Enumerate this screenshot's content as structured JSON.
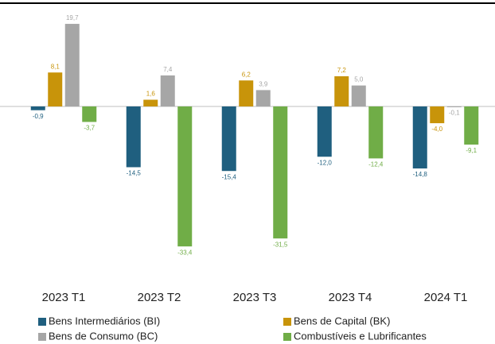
{
  "chart_data": {
    "type": "bar",
    "categories": [
      "2023 T1",
      "2023 T2",
      "2023 T3",
      "2023 T4",
      "2024 T1"
    ],
    "series": [
      {
        "name": "Bens Intermediários (BI)",
        "color": "#1f5f7f",
        "values": [
          -0.9,
          -14.5,
          -15.4,
          -12.0,
          -14.8
        ],
        "value_labels": [
          "-0,9",
          "-14,5",
          "-15,4",
          "-12,0",
          "-14,8"
        ]
      },
      {
        "name": "Bens de Capital (BK)",
        "color": "#c8940a",
        "values": [
          8.1,
          1.6,
          6.2,
          7.2,
          -4.0
        ],
        "value_labels": [
          "8,1",
          "1,6",
          "6,2",
          "7,2",
          "-4,0"
        ]
      },
      {
        "name": "Bens de Consumo (BC)",
        "color": "#a6a6a6",
        "values": [
          19.7,
          7.4,
          3.9,
          5.0,
          -0.1
        ],
        "value_labels": [
          "19,7",
          "7,4",
          "3,9",
          "5,0",
          "-0,1"
        ]
      },
      {
        "name": "Combustíveis e Lubrificantes",
        "color": "#70ad47",
        "values": [
          -3.7,
          -33.4,
          -31.5,
          -12.4,
          -9.1
        ],
        "value_labels": [
          "-3,7",
          "-33,4",
          "-31,5",
          "-12,4",
          "-9,1"
        ]
      }
    ],
    "ylim": [
      -40,
      23.5
    ]
  }
}
